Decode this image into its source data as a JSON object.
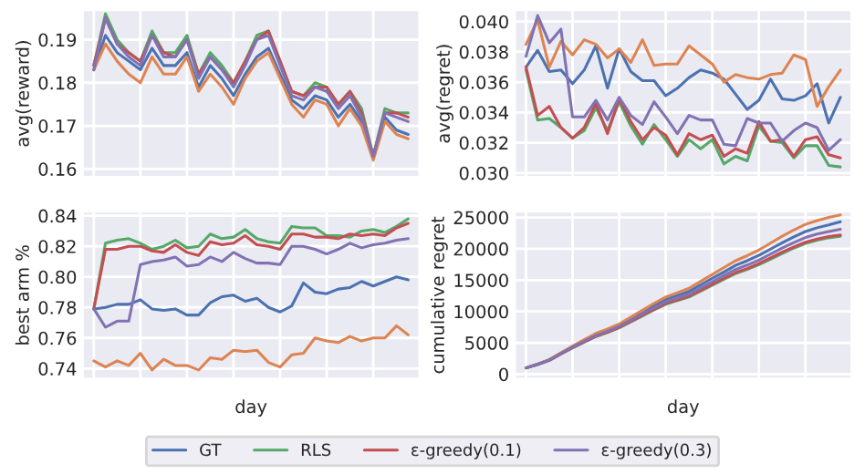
{
  "chart_data": [
    {
      "type": "line",
      "ylabel": "avg(reward)",
      "categories": [
        null,
        null,
        null,
        null,
        null,
        null,
        null,
        null,
        null,
        null,
        null,
        null,
        null,
        null,
        null,
        null,
        null,
        null,
        null,
        null,
        null,
        null,
        null,
        null,
        null,
        null,
        null,
        null
      ],
      "ylim": [
        0.158,
        0.197
      ],
      "yticks": [
        0.16,
        0.17,
        0.18,
        0.19
      ],
      "tick_labels": "y",
      "grid": true,
      "legend": "bottom",
      "series": [
        {
          "name": "GT",
          "color": "#4c72b0",
          "values": [
            0.183,
            0.191,
            0.187,
            0.185,
            0.183,
            0.188,
            0.184,
            0.184,
            0.187,
            0.179,
            0.184,
            0.181,
            0.177,
            0.182,
            0.186,
            0.188,
            0.182,
            0.176,
            0.174,
            0.177,
            0.176,
            0.172,
            0.175,
            0.171,
            0.163,
            0.172,
            0.169,
            0.168
          ]
        },
        {
          "color": "#dd8452",
          "values": [
            0.183,
            0.189,
            0.185,
            0.182,
            0.18,
            0.186,
            0.182,
            0.182,
            0.186,
            0.178,
            0.182,
            0.179,
            0.175,
            0.181,
            0.185,
            0.187,
            0.181,
            0.175,
            0.172,
            0.176,
            0.175,
            0.17,
            0.174,
            0.17,
            0.162,
            0.171,
            0.168,
            0.167
          ]
        },
        {
          "name": "RLS",
          "color": "#55a868",
          "values": [
            0.184,
            0.196,
            0.19,
            0.187,
            0.185,
            0.192,
            0.187,
            0.187,
            0.191,
            0.182,
            0.187,
            0.184,
            0.18,
            0.185,
            0.191,
            0.192,
            0.185,
            0.178,
            0.177,
            0.18,
            0.179,
            0.175,
            0.178,
            0.174,
            0.163,
            0.174,
            0.173,
            0.173
          ]
        },
        {
          "name": "ε-greedy(0.1)",
          "color": "#c44e52",
          "values": [
            0.184,
            0.195,
            0.189,
            0.187,
            0.185,
            0.191,
            0.187,
            0.186,
            0.19,
            0.182,
            0.186,
            0.183,
            0.18,
            0.185,
            0.19,
            0.192,
            0.185,
            0.178,
            0.177,
            0.179,
            0.179,
            0.175,
            0.178,
            0.173,
            0.163,
            0.173,
            0.173,
            0.172
          ]
        },
        {
          "name": "ε-greedy(0.3)",
          "color": "#8172b3",
          "values": [
            0.183,
            0.195,
            0.189,
            0.186,
            0.184,
            0.191,
            0.186,
            0.186,
            0.19,
            0.181,
            0.186,
            0.183,
            0.179,
            0.184,
            0.19,
            0.191,
            0.184,
            0.177,
            0.176,
            0.179,
            0.178,
            0.174,
            0.177,
            0.172,
            0.163,
            0.173,
            0.172,
            0.171
          ]
        }
      ]
    },
    {
      "type": "line",
      "ylabel": "avg(regret)",
      "categories": [
        null,
        null,
        null,
        null,
        null,
        null,
        null,
        null,
        null,
        null,
        null,
        null,
        null,
        null,
        null,
        null,
        null,
        null,
        null,
        null,
        null,
        null,
        null,
        null,
        null,
        null,
        null,
        null
      ],
      "ylim": [
        0.0297,
        0.0408
      ],
      "yticks": [
        {
          "value": 0.03,
          "label": "0.030"
        },
        {
          "value": 0.032,
          "label": "0.032"
        },
        {
          "value": 0.034,
          "label": "0.034"
        },
        {
          "value": 0.036,
          "label": "0.036"
        },
        {
          "value": 0.038,
          "label": "0.038"
        },
        {
          "value": 0.04,
          "label": "0.040"
        }
      ],
      "tick_labels": "y",
      "grid": true,
      "series": [
        {
          "name": "GT",
          "color": "#4c72b0",
          "values": [
            0.037,
            0.0381,
            0.0367,
            0.0368,
            0.0359,
            0.0368,
            0.0384,
            0.0356,
            0.0382,
            0.0367,
            0.0361,
            0.0361,
            0.0351,
            0.0356,
            0.0363,
            0.0368,
            0.0366,
            0.0362,
            0.0352,
            0.0342,
            0.0348,
            0.0362,
            0.0349,
            0.0348,
            0.0351,
            0.0359,
            0.0333,
            0.035
          ]
        },
        {
          "color": "#dd8452",
          "values": [
            0.0385,
            0.0401,
            0.037,
            0.0387,
            0.0378,
            0.0388,
            0.0385,
            0.0376,
            0.0382,
            0.0373,
            0.0388,
            0.0371,
            0.0372,
            0.0372,
            0.0384,
            0.0378,
            0.0372,
            0.036,
            0.0365,
            0.0363,
            0.0362,
            0.0365,
            0.0366,
            0.0378,
            0.0375,
            0.0344,
            0.0357,
            0.0368
          ]
        },
        {
          "name": "RLS",
          "color": "#55a868",
          "values": [
            0.0368,
            0.0335,
            0.0336,
            0.033,
            0.0323,
            0.0328,
            0.0343,
            0.0328,
            0.0347,
            0.0331,
            0.0319,
            0.0332,
            0.0322,
            0.0311,
            0.0322,
            0.0316,
            0.0322,
            0.0306,
            0.0311,
            0.0308,
            0.0331,
            0.0321,
            0.032,
            0.031,
            0.0318,
            0.0318,
            0.0305,
            0.0304
          ]
        },
        {
          "name": "ε-greedy(0.1)",
          "color": "#c44e52",
          "values": [
            0.037,
            0.0338,
            0.0344,
            0.033,
            0.0323,
            0.033,
            0.0346,
            0.0326,
            0.0349,
            0.0334,
            0.0322,
            0.033,
            0.0325,
            0.0312,
            0.0326,
            0.0322,
            0.0325,
            0.0311,
            0.0316,
            0.0313,
            0.0334,
            0.0321,
            0.0322,
            0.0311,
            0.0322,
            0.0324,
            0.0312,
            0.031
          ]
        },
        {
          "name": "ε-greedy(0.3)",
          "color": "#8172b3",
          "values": [
            0.0377,
            0.0404,
            0.0386,
            0.0395,
            0.0337,
            0.0337,
            0.0348,
            0.0335,
            0.035,
            0.0338,
            0.0332,
            0.0347,
            0.0337,
            0.0326,
            0.0338,
            0.0335,
            0.0335,
            0.0319,
            0.0318,
            0.0336,
            0.0333,
            0.0333,
            0.0321,
            0.0328,
            0.0333,
            0.033,
            0.0315,
            0.0322
          ]
        }
      ]
    },
    {
      "type": "line",
      "xlabel": "day",
      "ylabel": "best arm %",
      "categories": [
        null,
        null,
        null,
        null,
        null,
        null,
        null,
        null,
        null,
        null,
        null,
        null,
        null,
        null,
        null,
        null,
        null,
        null,
        null,
        null,
        null,
        null,
        null,
        null,
        null,
        null,
        null,
        null
      ],
      "ylim": [
        0.733,
        0.843
      ],
      "yticks": [
        0.74,
        0.76,
        0.78,
        {
          "value": 0.8,
          "label": "0.80"
        },
        0.82,
        0.84
      ],
      "tick_labels": "y",
      "grid": true,
      "series": [
        {
          "name": "GT",
          "color": "#4c72b0",
          "values": [
            0.779,
            0.78,
            0.782,
            0.782,
            0.785,
            0.779,
            0.778,
            0.779,
            0.775,
            0.775,
            0.783,
            0.787,
            0.788,
            0.784,
            0.786,
            0.78,
            0.777,
            0.781,
            0.796,
            0.79,
            0.789,
            0.792,
            0.793,
            0.797,
            0.794,
            0.797,
            0.8,
            0.798
          ]
        },
        {
          "color": "#dd8452",
          "values": [
            0.745,
            0.741,
            0.745,
            0.742,
            0.75,
            0.739,
            0.746,
            0.742,
            0.742,
            0.739,
            0.747,
            0.746,
            0.752,
            0.751,
            0.752,
            0.744,
            0.741,
            0.749,
            0.75,
            0.76,
            0.758,
            0.757,
            0.761,
            0.758,
            0.76,
            0.76,
            0.768,
            0.762
          ]
        },
        {
          "name": "RLS",
          "color": "#55a868",
          "values": [
            0.779,
            0.822,
            0.824,
            0.825,
            0.822,
            0.818,
            0.82,
            0.824,
            0.819,
            0.82,
            0.828,
            0.825,
            0.826,
            0.831,
            0.825,
            0.823,
            0.822,
            0.833,
            0.832,
            0.832,
            0.827,
            0.827,
            0.826,
            0.83,
            0.831,
            0.829,
            0.833,
            0.838
          ]
        },
        {
          "name": "ε-greedy(0.1)",
          "color": "#c44e52",
          "values": [
            0.779,
            0.818,
            0.818,
            0.82,
            0.82,
            0.817,
            0.816,
            0.821,
            0.816,
            0.814,
            0.823,
            0.821,
            0.822,
            0.827,
            0.821,
            0.82,
            0.818,
            0.828,
            0.828,
            0.826,
            0.826,
            0.825,
            0.828,
            0.827,
            0.828,
            0.827,
            0.832,
            0.835
          ]
        },
        {
          "name": "ε-greedy(0.3)",
          "color": "#8172b3",
          "values": [
            0.779,
            0.767,
            0.771,
            0.771,
            0.808,
            0.81,
            0.811,
            0.813,
            0.807,
            0.808,
            0.813,
            0.81,
            0.816,
            0.812,
            0.809,
            0.809,
            0.808,
            0.82,
            0.82,
            0.818,
            0.815,
            0.818,
            0.822,
            0.819,
            0.821,
            0.822,
            0.824,
            0.825
          ]
        }
      ]
    },
    {
      "type": "line",
      "xlabel": "day",
      "ylabel": "cumulative regret",
      "categories": [
        null,
        null,
        null,
        null,
        null,
        null,
        null,
        null,
        null,
        null,
        null,
        null,
        null,
        null,
        null,
        null,
        null,
        null,
        null,
        null,
        null,
        null,
        null,
        null,
        null,
        null,
        null,
        null
      ],
      "ylim": [
        -800,
        26000
      ],
      "yticks": [
        0,
        5000,
        10000,
        15000,
        20000,
        25000
      ],
      "tick_labels": "y",
      "grid": true,
      "series": [
        {
          "name": "GT",
          "color": "#4c72b0",
          "values": [
            1000,
            1600,
            2300,
            3350,
            4400,
            5350,
            6300,
            7000,
            7800,
            8850,
            9900,
            10950,
            11900,
            12550,
            13200,
            14250,
            15300,
            16300,
            17350,
            18100,
            18950,
            19950,
            20950,
            21900,
            22750,
            23350,
            23800,
            24300
          ]
        },
        {
          "color": "#dd8452",
          "values": [
            1000,
            1600,
            2300,
            3400,
            4500,
            5500,
            6500,
            7200,
            8000,
            9100,
            10200,
            11300,
            12300,
            13000,
            13700,
            14800,
            15900,
            17000,
            18100,
            18900,
            19800,
            20900,
            22000,
            23000,
            23900,
            24500,
            25000,
            25400
          ]
        },
        {
          "name": "RLS",
          "color": "#55a868",
          "values": [
            1000,
            1550,
            2200,
            3200,
            4200,
            5100,
            6000,
            6650,
            7400,
            8350,
            9300,
            10250,
            11150,
            11750,
            12300,
            13250,
            14200,
            15150,
            16050,
            16700,
            17450,
            18350,
            19250,
            20100,
            20850,
            21350,
            21750,
            22000
          ]
        },
        {
          "name": "ε-greedy(0.1)",
          "color": "#c44e52",
          "values": [
            1000,
            1550,
            2200,
            3250,
            4250,
            5150,
            6050,
            6700,
            7450,
            8400,
            9400,
            10350,
            11250,
            11850,
            12450,
            13400,
            14350,
            15300,
            16200,
            16850,
            17650,
            18550,
            19450,
            20300,
            21050,
            21550,
            21950,
            22200
          ]
        },
        {
          "name": "ε-greedy(0.3)",
          "color": "#8172b3",
          "values": [
            1000,
            1550,
            2250,
            3300,
            4300,
            5250,
            6150,
            6850,
            7600,
            8600,
            9600,
            10600,
            11500,
            12150,
            12750,
            13750,
            14750,
            15750,
            16700,
            17400,
            18200,
            19150,
            20100,
            21000,
            21800,
            22350,
            22750,
            23100
          ]
        }
      ]
    }
  ]
}
